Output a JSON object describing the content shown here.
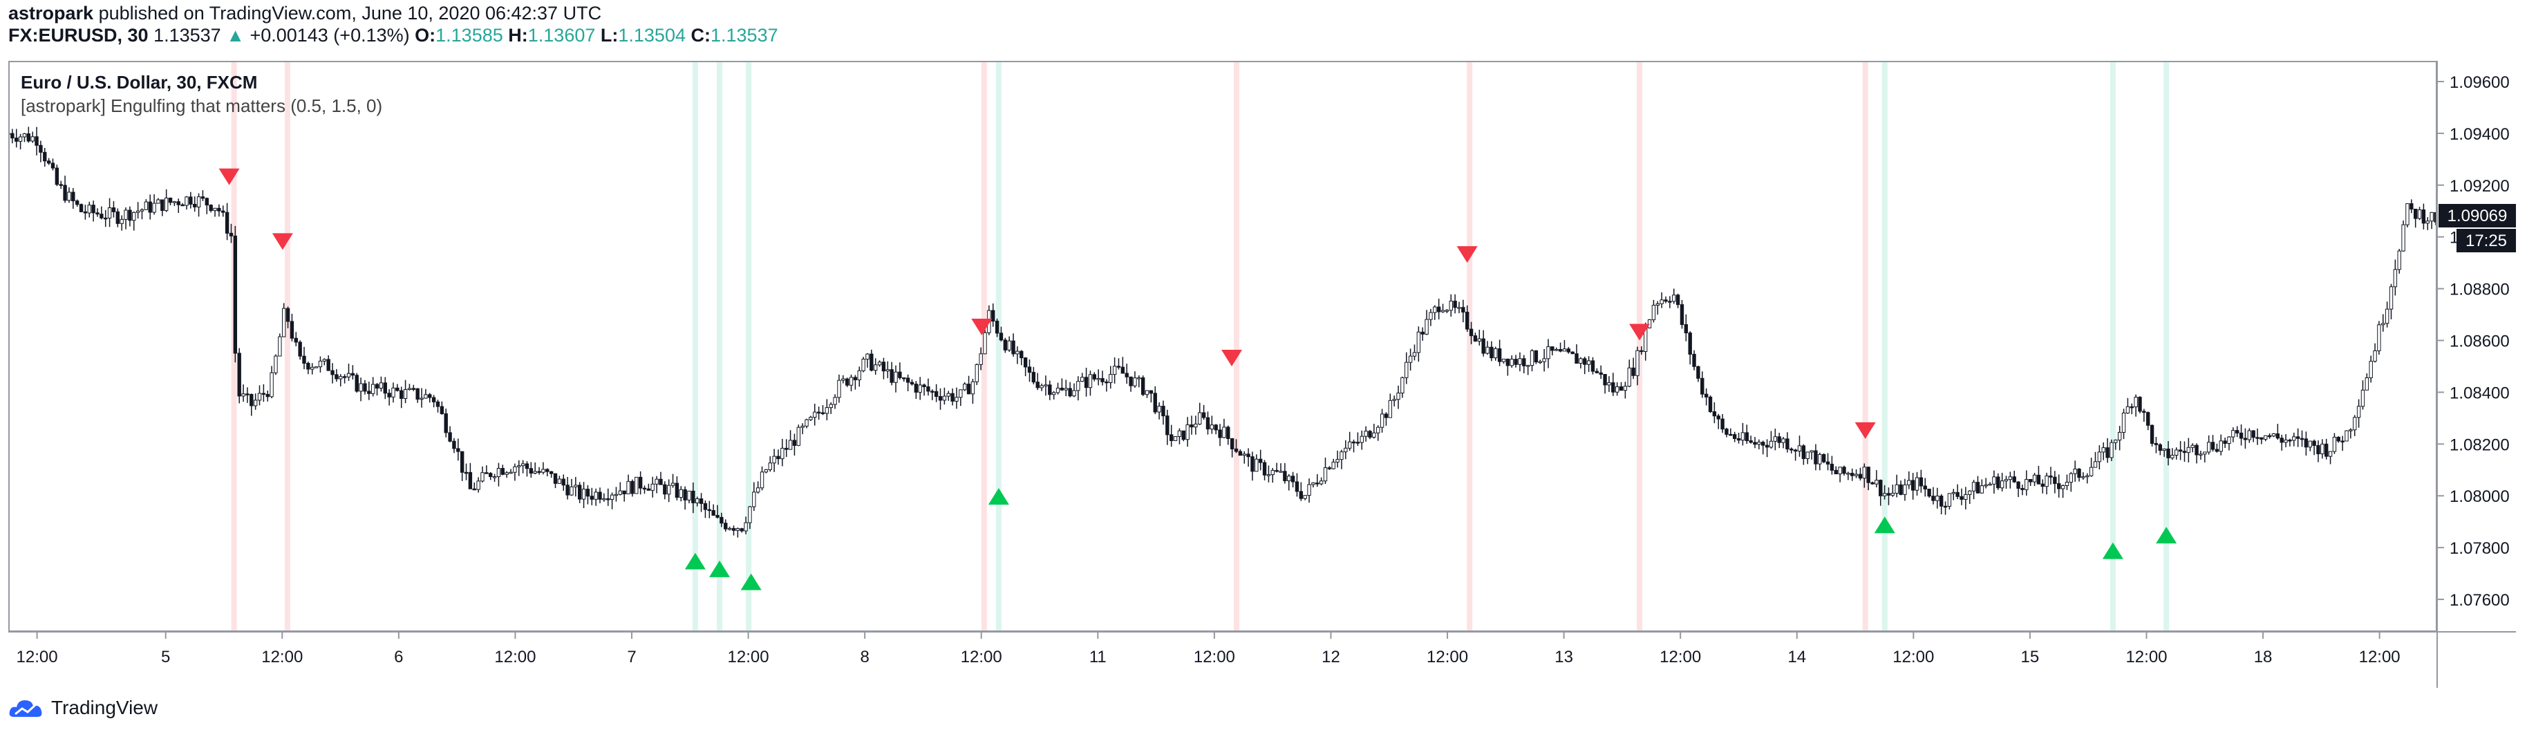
{
  "header": {
    "author": "astropark",
    "published_text": "published on TradingView.com, June 10, 2020 06:42:37 UTC",
    "symbol": "FX:EURUSD, 30",
    "last": "1.13537",
    "change": "+0.00143 (+0.13%)",
    "o_label": "O:",
    "o_value": "1.13585",
    "h_label": "H:",
    "h_value": "1.13607",
    "l_label": "L:",
    "l_value": "1.13504",
    "c_label": "C:",
    "c_value": "1.13537"
  },
  "legend": {
    "series_title": "Euro / U.S. Dollar, 30, FXCM",
    "indicator": "[astropark] Engulfing that matters (0.5, 1.5, 0)"
  },
  "price_badge": {
    "price": "1.09069",
    "countdown": "17:25"
  },
  "footer": {
    "brand": "TradingView"
  },
  "colors": {
    "up": "#26a69a",
    "bear_signal": "#f23645",
    "bull_signal": "#00c853",
    "bear_band": "#fde2e4",
    "bull_band": "#dcf5ee"
  },
  "chart_data": {
    "type": "candlestick",
    "ylim": [
      1.0748,
      1.0968
    ],
    "y_ticks": [
      "1.07600",
      "1.07800",
      "1.08000",
      "1.08200",
      "1.08400",
      "1.08600",
      "1.08800",
      "1.09000",
      "1.09200",
      "1.09400",
      "1.09600"
    ],
    "y_tick_values": [
      1.076,
      1.078,
      1.08,
      1.082,
      1.084,
      1.086,
      1.088,
      1.09,
      1.092,
      1.094,
      1.096
    ],
    "x_ticks": [
      "12:00",
      "5",
      "12:00",
      "6",
      "12:00",
      "7",
      "12:00",
      "8",
      "12:00",
      "11",
      "12:00",
      "12",
      "12:00",
      "13",
      "12:00",
      "14",
      "12:00",
      "15",
      "12:00",
      "18",
      "12:00"
    ],
    "x_ticks_positions": [
      0.005,
      0.058,
      0.106,
      0.154,
      0.202,
      0.25,
      0.298,
      0.346,
      0.394,
      0.442,
      0.49,
      0.538,
      0.586,
      0.634,
      0.682,
      0.73,
      0.778,
      0.826,
      0.874,
      0.922,
      0.97
    ],
    "close_path": [
      [
        0.0,
        1.094
      ],
      [
        0.012,
        1.0938
      ],
      [
        0.02,
        1.092
      ],
      [
        0.03,
        1.091
      ],
      [
        0.045,
        1.0908
      ],
      [
        0.06,
        1.0912
      ],
      [
        0.075,
        1.0915
      ],
      [
        0.086,
        1.0912
      ],
      [
        0.092,
        1.09
      ],
      [
        0.094,
        1.084
      ],
      [
        0.1,
        1.0835
      ],
      [
        0.108,
        1.0842
      ],
      [
        0.114,
        1.0872
      ],
      [
        0.12,
        1.0852
      ],
      [
        0.132,
        1.085
      ],
      [
        0.145,
        1.0842
      ],
      [
        0.16,
        1.084
      ],
      [
        0.175,
        1.0838
      ],
      [
        0.184,
        1.082
      ],
      [
        0.19,
        1.0802
      ],
      [
        0.2,
        1.081
      ],
      [
        0.21,
        1.0812
      ],
      [
        0.222,
        1.0808
      ],
      [
        0.236,
        1.08
      ],
      [
        0.25,
        1.0802
      ],
      [
        0.262,
        1.0805
      ],
      [
        0.274,
        1.0802
      ],
      [
        0.283,
        1.0798
      ],
      [
        0.292,
        1.079
      ],
      [
        0.302,
        1.0788
      ],
      [
        0.312,
        1.081
      ],
      [
        0.322,
        1.082
      ],
      [
        0.332,
        1.083
      ],
      [
        0.342,
        1.0842
      ],
      [
        0.354,
        1.0852
      ],
      [
        0.366,
        1.0845
      ],
      [
        0.38,
        1.084
      ],
      [
        0.392,
        1.0838
      ],
      [
        0.398,
        1.0845
      ],
      [
        0.404,
        1.087
      ],
      [
        0.41,
        1.086
      ],
      [
        0.422,
        1.0845
      ],
      [
        0.434,
        1.084
      ],
      [
        0.446,
        1.0845
      ],
      [
        0.458,
        1.0848
      ],
      [
        0.47,
        1.084
      ],
      [
        0.48,
        1.082
      ],
      [
        0.49,
        1.083
      ],
      [
        0.5,
        1.0825
      ],
      [
        0.512,
        1.0812
      ],
      [
        0.524,
        1.0808
      ],
      [
        0.534,
        1.08
      ],
      [
        0.546,
        1.0815
      ],
      [
        0.558,
        1.0822
      ],
      [
        0.57,
        1.0835
      ],
      [
        0.58,
        1.086
      ],
      [
        0.59,
        1.0875
      ],
      [
        0.598,
        1.087
      ],
      [
        0.61,
        1.0855
      ],
      [
        0.622,
        1.0852
      ],
      [
        0.636,
        1.0855
      ],
      [
        0.65,
        1.0852
      ],
      [
        0.662,
        1.084
      ],
      [
        0.67,
        1.085
      ],
      [
        0.678,
        1.0875
      ],
      [
        0.686,
        1.0878
      ],
      [
        0.696,
        1.0845
      ],
      [
        0.706,
        1.0825
      ],
      [
        0.718,
        1.082
      ],
      [
        0.73,
        1.0822
      ],
      [
        0.744,
        1.0815
      ],
      [
        0.754,
        1.0808
      ],
      [
        0.764,
        1.081
      ],
      [
        0.774,
        1.08
      ],
      [
        0.786,
        1.0805
      ],
      [
        0.796,
        1.0798
      ],
      [
        0.808,
        1.0802
      ],
      [
        0.82,
        1.0806
      ],
      [
        0.832,
        1.0805
      ],
      [
        0.846,
        1.0805
      ],
      [
        0.856,
        1.081
      ],
      [
        0.866,
        1.0818
      ],
      [
        0.876,
        1.084
      ],
      [
        0.886,
        1.0815
      ],
      [
        0.898,
        1.0818
      ],
      [
        0.91,
        1.082
      ],
      [
        0.924,
        1.0825
      ],
      [
        0.936,
        1.0822
      ],
      [
        0.946,
        1.082
      ],
      [
        0.956,
        1.0818
      ],
      [
        0.964,
        1.0825
      ],
      [
        0.972,
        1.0848
      ],
      [
        0.98,
        1.0875
      ],
      [
        0.988,
        1.091
      ],
      [
        1.0,
        1.0907
      ]
    ],
    "bear_signals": [
      {
        "x": 0.091,
        "y": 1.092
      },
      {
        "x": 0.113,
        "y": 1.0895
      },
      {
        "x": 0.401,
        "y": 1.0862
      },
      {
        "x": 0.504,
        "y": 1.085
      },
      {
        "x": 0.601,
        "y": 1.089
      },
      {
        "x": 0.672,
        "y": 1.086
      },
      {
        "x": 0.765,
        "y": 1.0822
      }
    ],
    "bull_signals": [
      {
        "x": 0.283,
        "y": 1.0778
      },
      {
        "x": 0.293,
        "y": 1.0775
      },
      {
        "x": 0.306,
        "y": 1.077
      },
      {
        "x": 0.408,
        "y": 1.0803
      },
      {
        "x": 0.773,
        "y": 1.0792
      },
      {
        "x": 0.867,
        "y": 1.0782
      },
      {
        "x": 0.889,
        "y": 1.0788
      }
    ],
    "bear_bands": [
      0.093,
      0.115,
      0.402,
      0.506,
      0.602,
      0.672,
      0.765
    ],
    "bull_bands": [
      0.283,
      0.293,
      0.305,
      0.408,
      0.773,
      0.867,
      0.889
    ]
  }
}
